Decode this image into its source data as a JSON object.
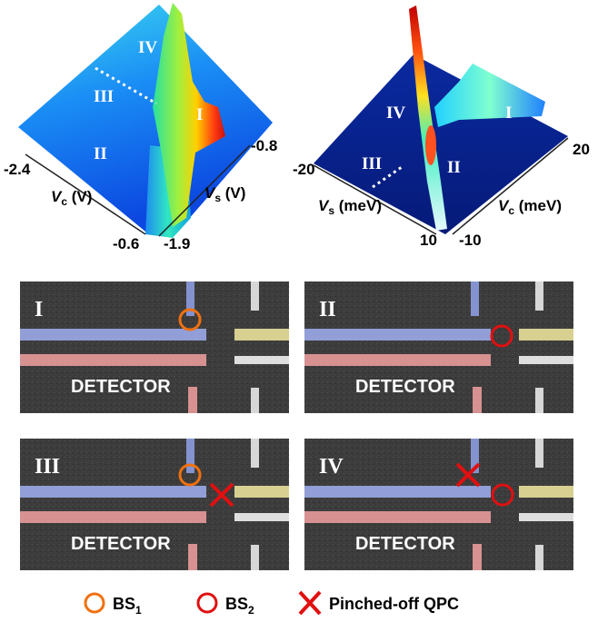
{
  "surface_plots": [
    {
      "regions": [
        "IV",
        "III",
        "II",
        "I"
      ],
      "tick_labels": [
        "-2.4",
        "-0.6",
        "-1.9",
        "-0.8"
      ],
      "x_label": {
        "symbol": "V",
        "subscript": "c",
        "unit": " (V)"
      },
      "y_label": {
        "symbol": "V",
        "subscript": "s",
        "unit": " (V)"
      }
    },
    {
      "regions": [
        "IV",
        "I",
        "III",
        "II"
      ],
      "tick_labels": [
        "-20",
        "20",
        "10",
        "-10"
      ],
      "x_label": {
        "symbol": "V",
        "subscript": "s",
        "unit": " (meV)"
      },
      "y_label": {
        "symbol": "V",
        "subscript": "c",
        "unit": " (meV)"
      }
    }
  ],
  "sem_panels": [
    {
      "label": "I",
      "detector": "DETECTOR"
    },
    {
      "label": "II",
      "detector": "DETECTOR"
    },
    {
      "label": "III",
      "detector": "DETECTOR"
    },
    {
      "label": "IV",
      "detector": "DETECTOR"
    }
  ],
  "legend": [
    {
      "symbol": "BS",
      "subscript": "1"
    },
    {
      "symbol": "BS",
      "subscript": "2"
    },
    {
      "label": "Pinched-off QPC"
    }
  ]
}
